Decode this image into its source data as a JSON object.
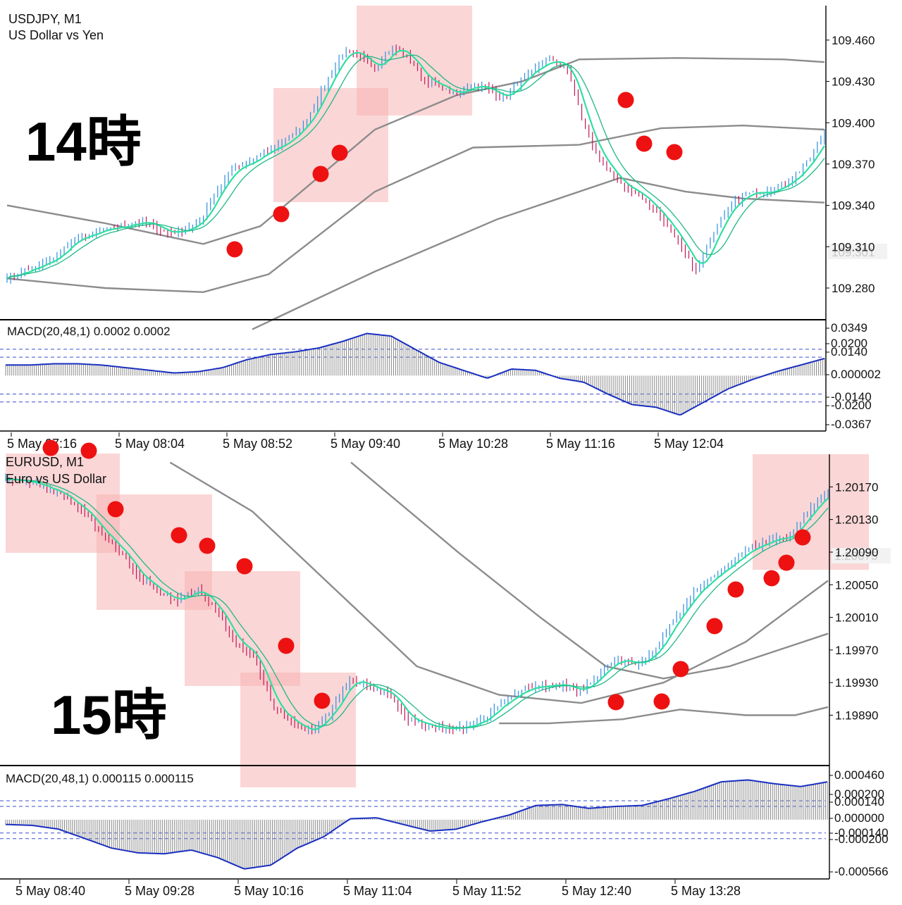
{
  "top": {
    "symbol_line": "USDJPY, M1",
    "desc_line": "US Dollar vs Yen",
    "big_label": "14時",
    "current_price": "109.301",
    "price_ticks": [
      "109.460",
      "109.430",
      "109.400",
      "109.370",
      "109.340",
      "109.310",
      "109.280"
    ],
    "price_tick_values": [
      109.46,
      109.43,
      109.4,
      109.37,
      109.34,
      109.31,
      109.28
    ],
    "macd_label": "MACD(20,48,1) 0.0002 0.0002",
    "macd_ticks": [
      "0.0349",
      "0.0200",
      "0.0140",
      "0.000002",
      "-0.0140",
      "-0.0200",
      "-0.0367"
    ],
    "time_ticks": [
      "5 May 07:16",
      "5 May 08:04",
      "5 May 08:52",
      "5 May 09:40",
      "5 May 10:28",
      "5 May 11:16",
      "5 May 12:04"
    ]
  },
  "bottom": {
    "symbol_line": "EURUSD, M1",
    "desc_line": "Euro vs US Dollar",
    "big_label": "15時",
    "current_price": "1.20075",
    "price_ticks": [
      "1.20170",
      "1.20130",
      "1.20090",
      "1.20050",
      "1.20010",
      "1.19970",
      "1.19930",
      "1.19890"
    ],
    "price_tick_values": [
      1.2017,
      1.2013,
      1.2009,
      1.2005,
      1.2001,
      1.1997,
      1.1993,
      1.1989
    ],
    "macd_label": "MACD(20,48,1) 0.000115 0.000115",
    "macd_ticks": [
      "0.000460",
      "0.000200",
      "0.000140",
      "0.000000",
      "-0.000140",
      "-0.000200",
      "-0.000566"
    ],
    "time_ticks": [
      "5 May 08:40",
      "5 May 09:28",
      "5 May 10:16",
      "5 May 11:04",
      "5 May 11:52",
      "5 May 12:40",
      "5 May 13:28"
    ]
  },
  "colors": {
    "bull": "#2f8fe0",
    "bear": "#c2185b",
    "ma_fast": "#2ee0a0",
    "ma_slow": "#1fb886",
    "band": "#8c8c8c",
    "macd_line": "#1a2fc0",
    "macd_hist": "#8a8a8a",
    "zone": "#f7b5b5",
    "dot": "#ee1111"
  },
  "chart_data": [
    {
      "type": "candlestick",
      "title": "USDJPY, M1",
      "subtitle": "US Dollar vs Yen",
      "ylim": [
        109.258,
        109.485
      ],
      "x_ticks": [
        "5 May 07:16",
        "5 May 08:04",
        "5 May 08:52",
        "5 May 09:40",
        "5 May 10:28",
        "5 May 11:16",
        "5 May 12:04"
      ],
      "close_path": [
        109.288,
        109.292,
        109.296,
        109.302,
        109.314,
        109.318,
        109.322,
        109.324,
        109.328,
        109.326,
        109.32,
        109.322,
        109.328,
        109.35,
        109.366,
        109.37,
        109.378,
        109.384,
        109.392,
        109.408,
        109.432,
        109.452,
        109.448,
        109.44,
        109.455,
        109.448,
        109.432,
        109.426,
        109.42,
        109.428,
        109.424,
        109.418,
        109.43,
        109.44,
        109.446,
        109.438,
        109.398,
        109.372,
        109.358,
        109.35,
        109.342,
        109.328,
        109.312,
        109.292,
        109.318,
        109.338,
        109.348,
        109.35,
        109.352,
        109.36,
        109.372,
        109.392
      ]
    },
    {
      "type": "bar",
      "title": "MACD(20,48,1) 0.0002 0.0002",
      "ylim": [
        -0.0367,
        0.0349
      ],
      "levels": [
        0.02,
        0.014,
        -0.014,
        -0.02
      ],
      "path": [
        0.008,
        0.008,
        0.009,
        0.009,
        0.008,
        0.006,
        0.004,
        0.002,
        0.003,
        0.006,
        0.012,
        0.016,
        0.018,
        0.021,
        0.026,
        0.032,
        0.03,
        0.02,
        0.01,
        0.004,
        -0.002,
        0.005,
        0.004,
        -0.002,
        -0.005,
        -0.014,
        -0.022,
        -0.024,
        -0.03,
        -0.02,
        -0.01,
        -0.003,
        0.003,
        0.008,
        0.013
      ]
    },
    {
      "type": "candlestick",
      "title": "EURUSD, M1",
      "subtitle": "Euro vs US Dollar",
      "ylim": [
        1.1983,
        1.2021
      ],
      "x_ticks": [
        "5 May 08:40",
        "5 May 09:28",
        "5 May 10:16",
        "5 May 11:04",
        "5 May 11:52",
        "5 May 12:40",
        "5 May 13:28"
      ],
      "close_path": [
        1.2018,
        1.20178,
        1.2017,
        1.2016,
        1.2014,
        1.20115,
        1.2009,
        1.2006,
        1.2004,
        1.2003,
        1.20045,
        1.2002,
        1.1998,
        1.1996,
        1.199,
        1.1988,
        1.1987,
        1.19895,
        1.19935,
        1.19925,
        1.19918,
        1.19885,
        1.19878,
        1.19872,
        1.19876,
        1.19885,
        1.19905,
        1.1992,
        1.19925,
        1.19928,
        1.1992,
        1.1994,
        1.1996,
        1.1995,
        1.1997,
        1.2001,
        1.2004,
        1.2006,
        1.2008,
        1.20095,
        1.20105,
        1.2011,
        1.2014,
        1.20165
      ]
    },
    {
      "type": "bar",
      "title": "MACD(20,48,1) 0.000115 0.000115",
      "ylim": [
        -0.000566,
        0.00046
      ],
      "levels": [
        0.0002,
        0.00014,
        -0.00014,
        -0.0002
      ],
      "path": [
        -5e-05,
        -6e-05,
        -0.0001,
        -0.0002,
        -0.0003,
        -0.00035,
        -0.00036,
        -0.00032,
        -0.0004,
        -0.00052,
        -0.00048,
        -0.0003,
        -0.00018,
        1e-05,
        2e-05,
        -5e-05,
        -0.00012,
        -0.0001,
        -2e-05,
        5e-05,
        0.00015,
        0.00016,
        0.00012,
        0.00014,
        0.00015,
        0.00022,
        0.0003,
        0.0004,
        0.00042,
        0.00038,
        0.00035,
        0.0004
      ]
    }
  ]
}
